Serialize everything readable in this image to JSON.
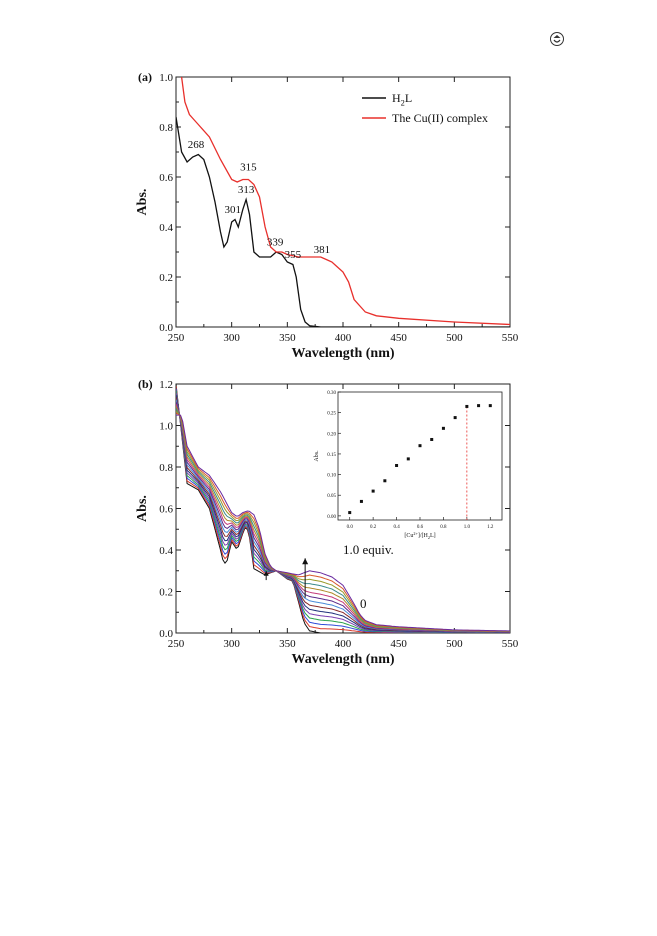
{
  "corner_icon": "recycle-logo-icon",
  "chart_data": [
    {
      "panel_label": "(a)",
      "type": "line",
      "xlabel": "Wavelength (nm)",
      "ylabel": "Abs.",
      "xlim": [
        250,
        550
      ],
      "ylim": [
        0.0,
        1.0
      ],
      "xticks": [
        "250",
        "300",
        "350",
        "400",
        "450",
        "500",
        "550"
      ],
      "yticks": [
        "0.0",
        "0.2",
        "0.4",
        "0.6",
        "0.8",
        "1.0"
      ],
      "legend": {
        "position": "top-right",
        "entries": [
          "H2L",
          "The Cu(II) complex"
        ]
      },
      "series": [
        {
          "name": "H2L",
          "color": "#111111",
          "x": [
            250,
            255,
            260,
            265,
            270,
            275,
            280,
            285,
            290,
            293,
            296,
            300,
            303,
            306,
            310,
            313,
            316,
            320,
            325,
            330,
            335,
            340,
            345,
            350,
            355,
            358,
            362,
            366,
            370,
            380,
            400,
            450,
            550
          ],
          "y": [
            0.84,
            0.7,
            0.66,
            0.68,
            0.69,
            0.67,
            0.6,
            0.5,
            0.38,
            0.32,
            0.34,
            0.42,
            0.43,
            0.4,
            0.47,
            0.51,
            0.45,
            0.3,
            0.28,
            0.28,
            0.28,
            0.3,
            0.29,
            0.26,
            0.25,
            0.2,
            0.07,
            0.02,
            0.005,
            0.0,
            0.0,
            0.0,
            0.0
          ]
        },
        {
          "name": "The Cu(II) complex",
          "color": "#e8302c",
          "x": [
            255,
            258,
            262,
            266,
            270,
            280,
            290,
            300,
            305,
            310,
            315,
            320,
            325,
            330,
            335,
            340,
            345,
            350,
            355,
            360,
            370,
            380,
            385,
            390,
            395,
            400,
            405,
            410,
            420,
            430,
            450,
            500,
            550
          ],
          "y": [
            1.0,
            0.9,
            0.85,
            0.83,
            0.81,
            0.76,
            0.67,
            0.59,
            0.58,
            0.59,
            0.59,
            0.57,
            0.52,
            0.4,
            0.32,
            0.3,
            0.3,
            0.29,
            0.285,
            0.28,
            0.28,
            0.28,
            0.27,
            0.26,
            0.24,
            0.22,
            0.18,
            0.11,
            0.06,
            0.045,
            0.035,
            0.02,
            0.01
          ]
        }
      ],
      "annotations": [
        {
          "text": "268",
          "x": 268,
          "y": 0.7
        },
        {
          "text": "315",
          "x": 315,
          "y": 0.61
        },
        {
          "text": "313",
          "x": 313,
          "y": 0.52
        },
        {
          "text": "301",
          "x": 301,
          "y": 0.44
        },
        {
          "text": "339",
          "x": 339,
          "y": 0.31
        },
        {
          "text": "355",
          "x": 355,
          "y": 0.26
        },
        {
          "text": "381",
          "x": 381,
          "y": 0.28
        }
      ]
    },
    {
      "panel_label": "(b)",
      "type": "line",
      "xlabel": "Wavelength (nm)",
      "ylabel": "Abs.",
      "xlim": [
        250,
        550
      ],
      "ylim": [
        0.0,
        1.2
      ],
      "xticks": [
        "250",
        "300",
        "350",
        "400",
        "450",
        "500",
        "550"
      ],
      "yticks": [
        "0.0",
        "0.2",
        "0.4",
        "0.6",
        "0.8",
        "1.0",
        "1.2"
      ],
      "titration_series_count": 15,
      "series_colors": [
        "#111111",
        "#d93a2b",
        "#2f4bd8",
        "#2aa14a",
        "#7a3fb0",
        "#1f2f7a",
        "#8a2b2b",
        "#4a8ad8",
        "#5a2a8a",
        "#c43a7a",
        "#b08a2a",
        "#3a8a8a",
        "#9a9a2a",
        "#d8582a",
        "#6a2aa0"
      ],
      "start_spectrum": {
        "x": [
          250,
          260,
          270,
          280,
          290,
          293,
          296,
          300,
          305,
          310,
          313,
          316,
          320,
          330,
          340,
          350,
          355,
          360,
          365,
          370,
          380,
          400,
          450,
          550
        ],
        "y": [
          1.2,
          0.72,
          0.69,
          0.6,
          0.4,
          0.33,
          0.35,
          0.44,
          0.4,
          0.48,
          0.52,
          0.46,
          0.31,
          0.28,
          0.3,
          0.26,
          0.25,
          0.15,
          0.05,
          0.01,
          0.0,
          0.0,
          0.0,
          0.0
        ]
      },
      "end_spectrum": {
        "x": [
          255,
          260,
          270,
          280,
          290,
          300,
          305,
          310,
          315,
          320,
          325,
          330,
          335,
          340,
          350,
          360,
          370,
          380,
          390,
          400,
          410,
          415,
          420,
          430,
          450,
          500,
          550
        ],
        "y": [
          1.05,
          0.9,
          0.8,
          0.76,
          0.68,
          0.58,
          0.56,
          0.58,
          0.59,
          0.57,
          0.5,
          0.38,
          0.32,
          0.3,
          0.29,
          0.28,
          0.3,
          0.29,
          0.27,
          0.23,
          0.14,
          0.09,
          0.06,
          0.04,
          0.03,
          0.015,
          0.01
        ]
      },
      "annotations": [
        {
          "text": "1.0 equiv.",
          "x": 370,
          "y": 0.44
        },
        {
          "text": "0",
          "x": 366,
          "y": 0.15
        }
      ],
      "inset": {
        "type": "scatter",
        "xlabel": "[Cu2+]/[H2L]",
        "ylabel": "Abs.",
        "xlim": [
          -0.1,
          1.3
        ],
        "ylim": [
          -0.01,
          0.3
        ],
        "xticks": [
          "0.0",
          "0.2",
          "0.4",
          "0.6",
          "0.8",
          "1.0",
          "1.2"
        ],
        "yticks": [
          "0.00",
          "0.05",
          "0.10",
          "0.15",
          "0.20",
          "0.25",
          "0.30"
        ],
        "x": [
          0.0,
          0.1,
          0.2,
          0.3,
          0.4,
          0.5,
          0.6,
          0.7,
          0.8,
          0.9,
          1.0,
          1.1,
          1.2
        ],
        "y": [
          0.008,
          0.035,
          0.06,
          0.085,
          0.122,
          0.138,
          0.17,
          0.185,
          0.212,
          0.238,
          0.265,
          0.267,
          0.267
        ],
        "reference_line_x": 1.0,
        "reference_line_color": "#e8302c"
      }
    }
  ]
}
